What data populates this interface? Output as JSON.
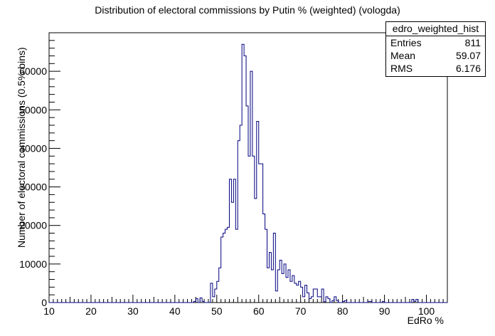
{
  "title": "Distribution of electoral commissions by Putin % (weighted) (vologda)",
  "stats_box": {
    "name": "edro_weighted_hist",
    "rows": [
      {
        "key": "Entries",
        "value": "811"
      },
      {
        "key": "Mean",
        "value": "59.07"
      },
      {
        "key": "RMS",
        "value": "6.176"
      }
    ]
  },
  "chart_data": {
    "type": "bar",
    "title": "Distribution of electoral commissions by Putin % (weighted) (vologda)",
    "xlabel": "EdRo %",
    "ylabel": "Number of electoral commissions (0.5% bins)",
    "xlim": [
      10,
      105
    ],
    "ylim": [
      0,
      70000
    ],
    "x_ticks": [
      "10",
      "20",
      "30",
      "40",
      "50",
      "60",
      "70",
      "80",
      "90",
      "100"
    ],
    "y_ticks": [
      "0",
      "10000",
      "20000",
      "30000",
      "40000",
      "50000",
      "60000"
    ],
    "bin_width": 0.5,
    "line_color": "#000080",
    "bins": [
      [
        44.5,
        300
      ],
      [
        45,
        1000
      ],
      [
        45.5,
        0
      ],
      [
        46,
        1200
      ],
      [
        46.5,
        300
      ],
      [
        48.5,
        5000
      ],
      [
        49,
        1500
      ],
      [
        49.5,
        3500
      ],
      [
        50,
        5500
      ],
      [
        50.5,
        9000
      ],
      [
        51,
        17000
      ],
      [
        51.5,
        18000
      ],
      [
        52,
        19000
      ],
      [
        52.5,
        19500
      ],
      [
        53,
        32000
      ],
      [
        53.5,
        26000
      ],
      [
        54,
        32000
      ],
      [
        54.5,
        19000
      ],
      [
        55,
        42000
      ],
      [
        55.5,
        46000
      ],
      [
        56,
        67000
      ],
      [
        56.5,
        64000
      ],
      [
        57,
        51000
      ],
      [
        57.5,
        38000
      ],
      [
        58,
        60000
      ],
      [
        58.5,
        38000
      ],
      [
        59,
        27000
      ],
      [
        59.5,
        47000
      ],
      [
        60,
        36000
      ],
      [
        60.5,
        36000
      ],
      [
        61,
        23000
      ],
      [
        61.5,
        19000
      ],
      [
        62,
        9000
      ],
      [
        62.5,
        13000
      ],
      [
        63,
        8500
      ],
      [
        63.5,
        18000
      ],
      [
        64,
        3000
      ],
      [
        64.5,
        8500
      ],
      [
        65,
        11000
      ],
      [
        65.5,
        7500
      ],
      [
        66,
        10000
      ],
      [
        66.5,
        6500
      ],
      [
        67,
        8500
      ],
      [
        67.5,
        5500
      ],
      [
        68,
        7000
      ],
      [
        68.5,
        5000
      ],
      [
        69,
        4500
      ],
      [
        69.5,
        5500
      ],
      [
        70,
        4000
      ],
      [
        70.5,
        1500
      ],
      [
        71,
        4500
      ],
      [
        71.5,
        2500
      ],
      [
        72,
        1000
      ],
      [
        72.5,
        1500
      ],
      [
        73,
        3500
      ],
      [
        73.5,
        3500
      ],
      [
        74,
        1500
      ],
      [
        74.5,
        1500
      ],
      [
        75,
        3500
      ],
      [
        75.5,
        200
      ],
      [
        76,
        1500
      ],
      [
        76.5,
        1000
      ],
      [
        77,
        0
      ],
      [
        77.5,
        500
      ],
      [
        78,
        1500
      ],
      [
        78.5,
        500
      ],
      [
        80,
        300
      ],
      [
        80.5,
        500
      ],
      [
        86,
        300
      ],
      [
        86.5,
        300
      ],
      [
        89.5,
        300
      ],
      [
        96.5,
        800
      ],
      [
        97,
        300
      ],
      [
        97.5,
        800
      ]
    ]
  }
}
